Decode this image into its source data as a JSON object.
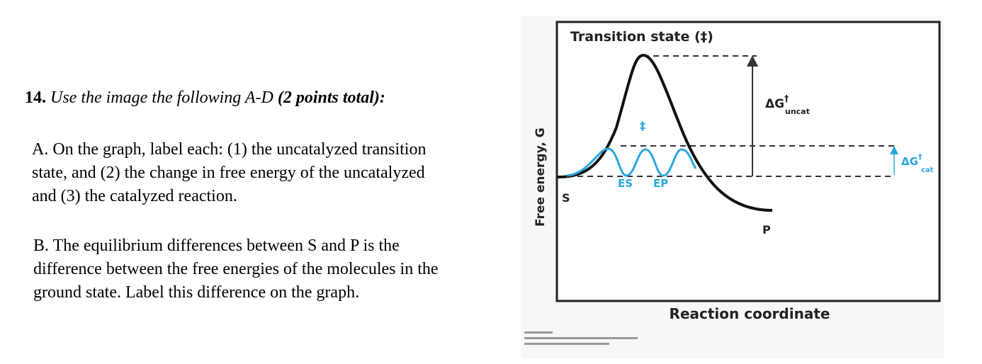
{
  "question": {
    "number": "14.",
    "instruction": "Use the image the following A-D",
    "points": "(2 points total):"
  },
  "parts": [
    {
      "lines": [
        "A. On the graph, label each: (1) the uncatalyzed transition",
        "state, and (2) the change in free energy of the uncatalyzed",
        "and (3) the catalyzed reaction."
      ]
    },
    {
      "lines": [
        "B. The equilibrium differences between S and P is the",
        "difference between the free energies of the molecules in the",
        "ground state. Label this difference on the graph."
      ]
    }
  ],
  "diagram": {
    "title": "Transition state (‡)",
    "y_axis": "Free energy, G",
    "x_axis": "Reaction coordinate",
    "labels": {
      "substrate": "S",
      "product": "P",
      "es": "ES",
      "ep": "EP",
      "dagger": "‡"
    },
    "uncat": {
      "symbol": "ΔG",
      "dagger": "†",
      "sub": "uncat"
    },
    "cat": {
      "symbol": "ΔG",
      "dagger": "†",
      "sub": "cat"
    }
  }
}
